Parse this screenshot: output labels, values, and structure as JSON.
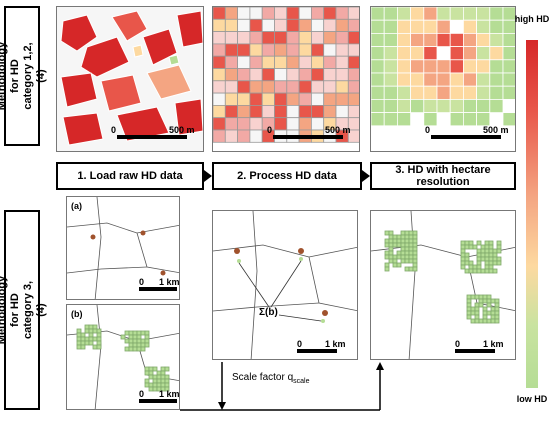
{
  "side_labels": {
    "top": "Methodology for HD category 1,2,(4)",
    "bottom": "Methodology for HD category 3,(4)"
  },
  "steps": [
    {
      "label": "1. Load raw HD data"
    },
    {
      "label": "2. Process HD data"
    },
    {
      "label": "3. HD with hectare resolution"
    }
  ],
  "scales": {
    "top_scale": "500 m",
    "top_zero": "0",
    "km_scale": "1 km",
    "km_zero": "0"
  },
  "panels": {
    "a": "(a)",
    "b": "(b)"
  },
  "sum_label": "Σ(b)",
  "scale_factor": {
    "text": "Scale factor q",
    "subscript": "scale"
  },
  "legend": {
    "high": "high HD",
    "low": "low HD"
  },
  "colors": {
    "high": "#d62728",
    "mid": "#f4a582",
    "low": "#b5dd95",
    "point": "#a0522d"
  }
}
